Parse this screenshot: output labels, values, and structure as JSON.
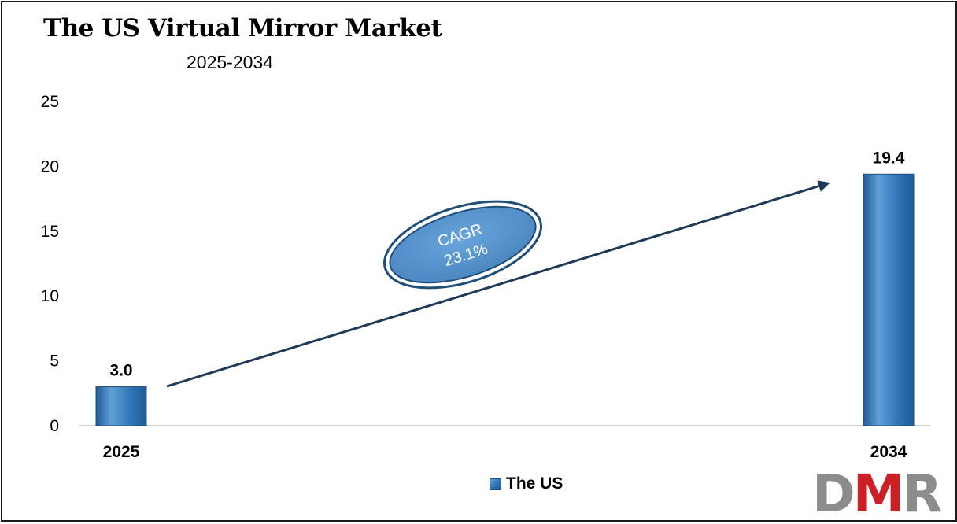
{
  "header": {
    "title": "The US Virtual Mirror Market",
    "subtitle": "2025-2034"
  },
  "annotation": {
    "line1": "CAGR",
    "line2": "23.1%"
  },
  "logo": {
    "d": "D",
    "m": "M",
    "r": "R"
  },
  "colors": {
    "bar": "#2e75b6",
    "bar_dark": "#1f5a94",
    "bar_light": "#5fa0d8",
    "arrow": "#1f3b57",
    "ellipse_fill": "#5b9bd5",
    "ellipse_ring": "#1f4e79",
    "axis": "#bfbfbf",
    "logo_gray": "#8c8c8c",
    "logo_red": "#cc2027"
  },
  "chart_data": {
    "type": "bar",
    "title": "The US Virtual Mirror Market",
    "subtitle": "2025-2034",
    "categories": [
      "2025",
      "2034"
    ],
    "series": [
      {
        "name": "The US",
        "values": [
          3.0,
          19.4
        ],
        "labels": [
          "3.0",
          "19.4"
        ]
      }
    ],
    "yticks": [
      "0",
      "5",
      "10",
      "15",
      "20",
      "25"
    ],
    "ylim": [
      0,
      25
    ],
    "xlabel": "",
    "ylabel": "",
    "grid": false,
    "legend": "bottom-center",
    "annotation": "CAGR 23.1%"
  }
}
